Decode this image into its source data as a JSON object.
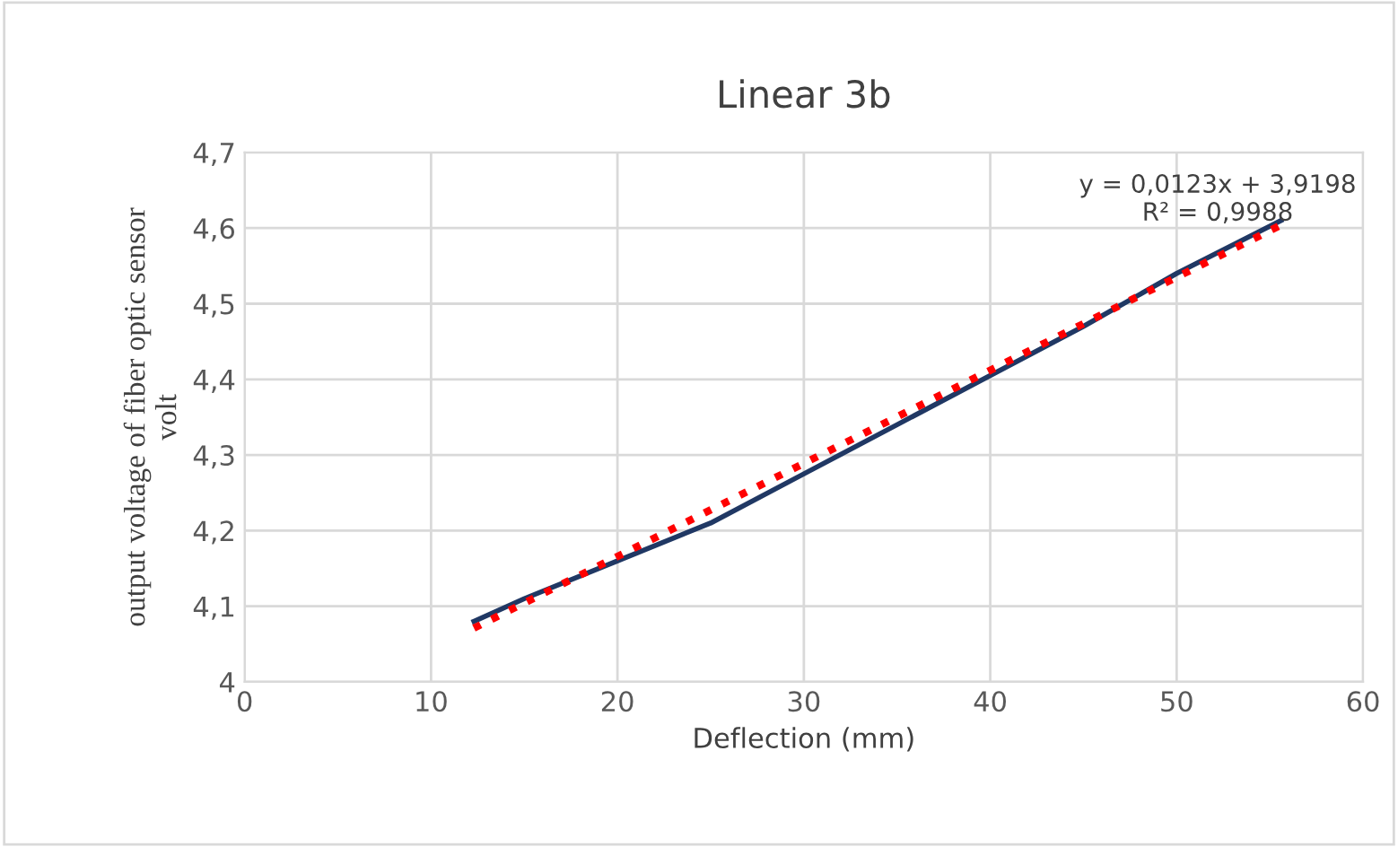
{
  "chart_data": {
    "type": "line",
    "title": "Linear 3b",
    "xlabel": "Deflection (mm)",
    "ylabel": "output voltage of fiber optic sensor\nvolt",
    "series": [
      {
        "x": [
          12.3,
          15,
          20,
          25,
          30,
          35,
          40,
          45,
          50,
          55.6
        ],
        "values": [
          4.08,
          4.11,
          4.16,
          4.21,
          4.275,
          4.34,
          4.405,
          4.47,
          4.54,
          4.61
        ],
        "color": "#203864",
        "line_style": "solid"
      },
      {
        "x": [
          12.3,
          55.6
        ],
        "values": [
          4.071,
          4.604
        ],
        "color": "#ff0000",
        "line_style": "dotted"
      }
    ],
    "annotations": [
      "y = 0,0123x + 3,9198\nR² = 0,9988"
    ],
    "xlim": [
      0,
      60
    ],
    "xticks": [
      0,
      10,
      20,
      30,
      40,
      50,
      60
    ],
    "ylim": [
      4,
      4.7
    ],
    "yticks": [
      4,
      {
        "value": 4.1,
        "label": "4,1"
      },
      {
        "value": 4.2,
        "label": "4,2"
      },
      {
        "value": 4.3,
        "label": "4,3"
      },
      {
        "value": 4.4,
        "label": "4,4"
      },
      {
        "value": 4.5,
        "label": "4,5"
      },
      {
        "value": 4.6,
        "label": "4,6"
      },
      {
        "value": 4.7,
        "label": "4,7"
      }
    ],
    "grid": true,
    "legend": false,
    "marker": "none"
  }
}
